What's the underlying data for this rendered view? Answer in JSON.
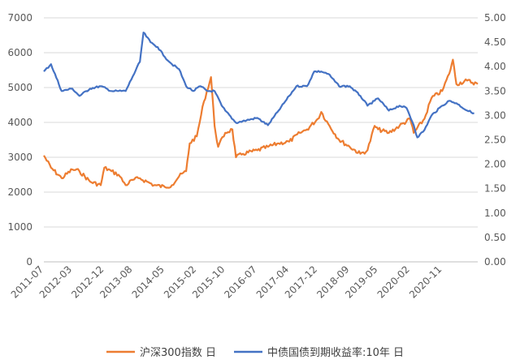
{
  "chart_data": {
    "type": "line",
    "title": "",
    "xlabel": "",
    "ylabel": "",
    "legend_position": "bottom",
    "grid": true,
    "x_tick_labels": [
      "2011-07",
      "2012-03",
      "2012-12",
      "2013-08",
      "2014-05",
      "2015-02",
      "2015-10",
      "2016-07",
      "2017-04",
      "2017-12",
      "2018-09",
      "2019-05",
      "2020-02",
      "2020-11"
    ],
    "y_left": {
      "ylim": [
        0,
        7000
      ],
      "tick_labels": [
        "0",
        "1000",
        "2000",
        "3000",
        "4000",
        "5000",
        "6000",
        "7000"
      ]
    },
    "y_right": {
      "ylim": [
        0,
        5
      ],
      "tick_labels": [
        "0.00",
        "0.50",
        "1.00",
        "1.50",
        "2.00",
        "2.50",
        "3.00",
        "3.50",
        "4.00",
        "4.50",
        "5.00"
      ]
    },
    "series": [
      {
        "name": "沪深300指数 日",
        "axis": "left",
        "color": "#ED7D31",
        "x": [
          "2011-07",
          "2011-09",
          "2011-12",
          "2012-03",
          "2012-05",
          "2012-08",
          "2012-11",
          "2012-12",
          "2013-02",
          "2013-04",
          "2013-06",
          "2013-08",
          "2013-10",
          "2013-12",
          "2014-02",
          "2014-05",
          "2014-07",
          "2014-09",
          "2014-11",
          "2014-12",
          "2015-02",
          "2015-04",
          "2015-06",
          "2015-07",
          "2015-08",
          "2015-10",
          "2015-12",
          "2016-01",
          "2016-03",
          "2016-07",
          "2016-10",
          "2017-01",
          "2017-04",
          "2017-07",
          "2017-09",
          "2017-12",
          "2018-01",
          "2018-03",
          "2018-06",
          "2018-09",
          "2018-12",
          "2019-02",
          "2019-04",
          "2019-05",
          "2019-08",
          "2019-11",
          "2020-02",
          "2020-03",
          "2020-06",
          "2020-08",
          "2020-11",
          "2021-01",
          "2021-02",
          "2021-03",
          "2021-06",
          "2021-09"
        ],
        "values": [
          3050,
          2700,
          2400,
          2650,
          2600,
          2300,
          2200,
          2700,
          2600,
          2500,
          2200,
          2350,
          2400,
          2300,
          2200,
          2150,
          2200,
          2450,
          2600,
          3400,
          3600,
          4600,
          5300,
          3900,
          3300,
          3700,
          3800,
          3000,
          3100,
          3200,
          3300,
          3400,
          3450,
          3700,
          3800,
          4100,
          4300,
          3950,
          3500,
          3300,
          3100,
          3200,
          3900,
          3800,
          3700,
          3900,
          4100,
          3700,
          4100,
          4700,
          4900,
          5400,
          5800,
          5100,
          5200,
          5100
        ]
      },
      {
        "name": "中债国债到期收益率:10年 日",
        "axis": "right",
        "color": "#4472C4",
        "x": [
          "2011-07",
          "2011-09",
          "2011-12",
          "2012-03",
          "2012-05",
          "2012-08",
          "2012-11",
          "2013-02",
          "2013-04",
          "2013-06",
          "2013-08",
          "2013-10",
          "2013-11",
          "2014-01",
          "2014-03",
          "2014-05",
          "2014-07",
          "2014-09",
          "2014-11",
          "2015-01",
          "2015-03",
          "2015-05",
          "2015-07",
          "2015-09",
          "2015-10",
          "2016-01",
          "2016-04",
          "2016-07",
          "2016-10",
          "2017-01",
          "2017-04",
          "2017-06",
          "2017-09",
          "2017-11",
          "2018-01",
          "2018-03",
          "2018-06",
          "2018-09",
          "2018-12",
          "2019-02",
          "2019-04",
          "2019-05",
          "2019-08",
          "2019-11",
          "2020-01",
          "2020-03",
          "2020-04",
          "2020-06",
          "2020-08",
          "2020-11",
          "2021-01",
          "2021-03",
          "2021-06",
          "2021-08"
        ],
        "values": [
          3.9,
          4.05,
          3.5,
          3.55,
          3.4,
          3.55,
          3.6,
          3.5,
          3.5,
          3.5,
          3.8,
          4.1,
          4.7,
          4.5,
          4.4,
          4.2,
          4.05,
          3.95,
          3.6,
          3.5,
          3.6,
          3.5,
          3.5,
          3.2,
          3.1,
          2.85,
          2.9,
          2.95,
          2.8,
          3.1,
          3.4,
          3.6,
          3.6,
          3.9,
          3.9,
          3.85,
          3.6,
          3.6,
          3.4,
          3.2,
          3.3,
          3.35,
          3.1,
          3.2,
          3.15,
          2.8,
          2.55,
          2.7,
          3.0,
          3.2,
          3.3,
          3.25,
          3.1,
          3.05
        ]
      }
    ]
  }
}
